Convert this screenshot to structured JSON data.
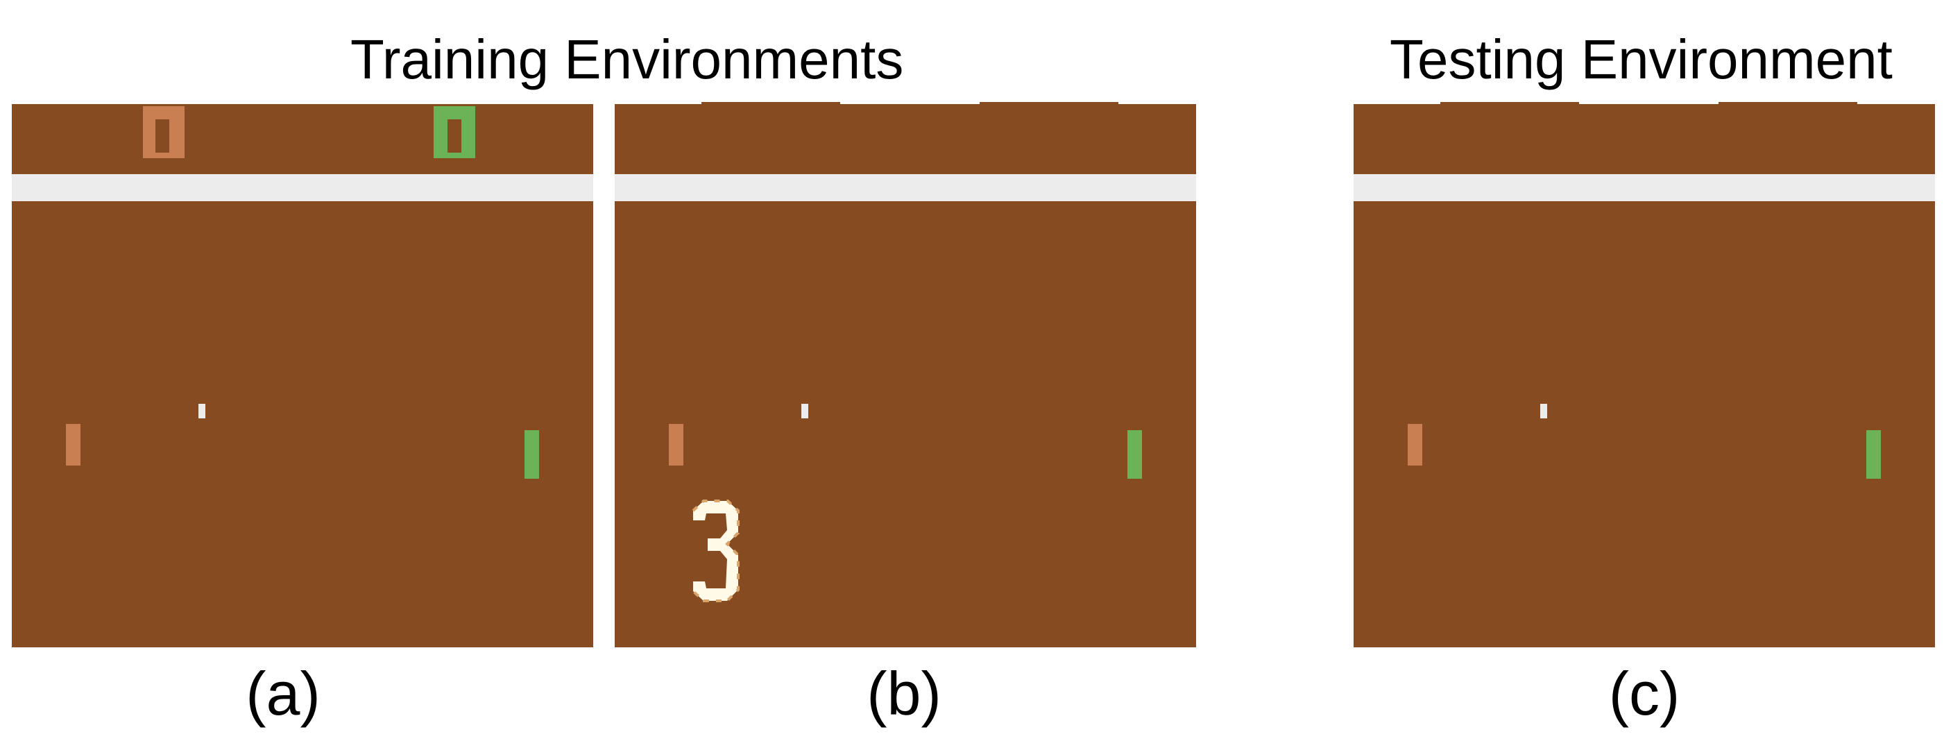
{
  "headings": {
    "training": "Training Environments",
    "testing": "Testing Environment"
  },
  "panels": [
    {
      "caption": "(a)",
      "score_marks": "boxes",
      "distractor_digit": "",
      "left_paddle_level": 0.29,
      "right_paddle_level": 0.27,
      "ball_level": 0.35
    },
    {
      "caption": "(b)",
      "score_marks": "bars",
      "distractor_digit": "3",
      "left_paddle_level": 0.29,
      "right_paddle_level": 0.27,
      "ball_level": 0.35
    },
    {
      "caption": "(c)",
      "score_marks": "bars",
      "distractor_digit": "",
      "left_paddle_level": 0.29,
      "right_paddle_level": 0.27,
      "ball_level": 0.35
    }
  ],
  "colors": {
    "court": "#864b21",
    "wall": "#ececec",
    "left_player": "#c97f52",
    "right_player": "#6cb358",
    "ball": "#ececec",
    "digit": "#fffbe8"
  }
}
